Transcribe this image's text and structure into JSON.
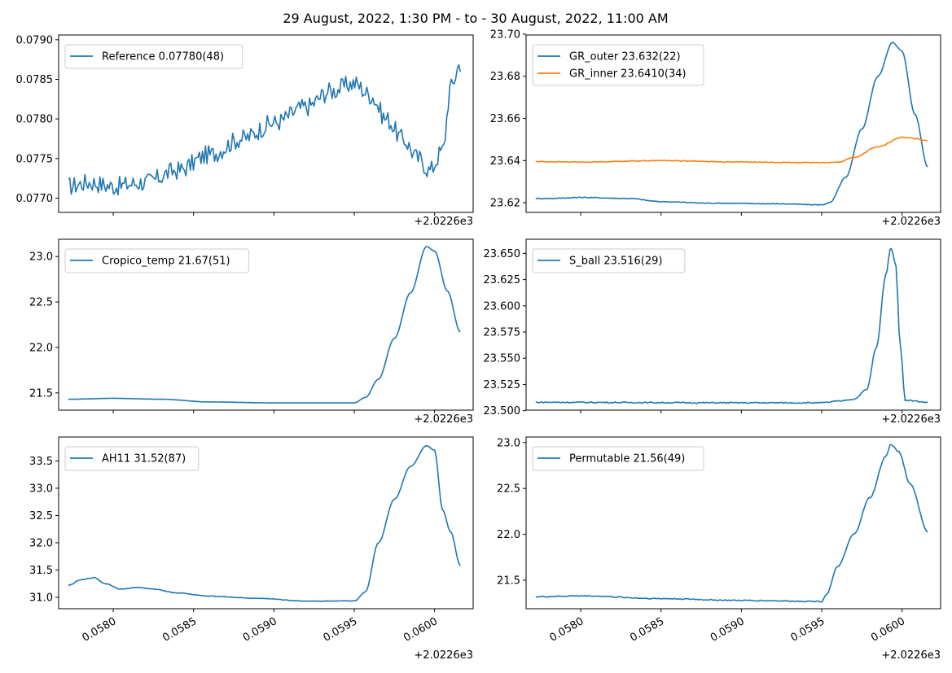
{
  "suptitle": "29 August, 2022, 1:30 PM - to - 30 August, 2022, 11:00 AM",
  "colors": {
    "series_blue": "#1f77b4",
    "series_orange": "#ff7f0e"
  },
  "chart_data": [
    {
      "type": "line",
      "panel": "top-left",
      "x_offset_label": "+2.0226e3",
      "xticks": [
        0.058,
        0.0585,
        0.059,
        0.0595,
        0.06
      ],
      "xtick_labels_shown": false,
      "xlim": [
        0.05766,
        0.06024
      ],
      "ylim": [
        0.07682,
        0.07906
      ],
      "yticks": [
        0.077,
        0.0775,
        0.078,
        0.0785,
        0.079
      ],
      "ytick_labels": [
        "0.0770",
        "0.0775",
        "0.0780",
        "0.0785",
        "0.0790"
      ],
      "legend_position": "upper-left",
      "series": [
        {
          "name": "Reference 0.07780(48)",
          "color": "#1f77b4",
          "x_range": [
            0.05772,
            0.06016
          ],
          "keypoints": [
            [
              0.05772,
              0.07715
            ],
            [
              0.05785,
              0.0772
            ],
            [
              0.058,
              0.07715
            ],
            [
              0.0582,
              0.0772
            ],
            [
              0.0584,
              0.07735
            ],
            [
              0.0586,
              0.07755
            ],
            [
              0.0588,
              0.07775
            ],
            [
              0.059,
              0.07795
            ],
            [
              0.0592,
              0.07815
            ],
            [
              0.05935,
              0.07835
            ],
            [
              0.0595,
              0.07845
            ],
            [
              0.0596,
              0.0783
            ],
            [
              0.0597,
              0.078
            ],
            [
              0.0598,
              0.07775
            ],
            [
              0.0599,
              0.0775
            ],
            [
              0.05997,
              0.07735
            ],
            [
              0.06005,
              0.0776
            ],
            [
              0.0601,
              0.0784
            ],
            [
              0.06016,
              0.0787
            ]
          ],
          "noise": 0.00012
        }
      ]
    },
    {
      "type": "line",
      "panel": "top-right",
      "x_offset_label": "+2.0226e3",
      "xticks": [
        0.058,
        0.0585,
        0.059,
        0.0595,
        0.06
      ],
      "xtick_labels_shown": false,
      "xlim": [
        0.05766,
        0.06024
      ],
      "ylim": [
        23.6154,
        23.6996
      ],
      "yticks": [
        23.62,
        23.64,
        23.66,
        23.68,
        23.7
      ],
      "ytick_labels": [
        "23.62",
        "23.64",
        "23.66",
        "23.68",
        "23.70"
      ],
      "legend_position": "upper-left",
      "series": [
        {
          "name": "GR_outer 23.632(22)",
          "color": "#1f77b4",
          "x_range": [
            0.05772,
            0.06016
          ],
          "keypoints": [
            [
              0.05772,
              23.622
            ],
            [
              0.0578,
              23.622
            ],
            [
              0.058,
              23.6225
            ],
            [
              0.0583,
              23.622
            ],
            [
              0.0585,
              23.6205
            ],
            [
              0.0588,
              23.6198
            ],
            [
              0.0592,
              23.6195
            ],
            [
              0.0595,
              23.619
            ],
            [
              0.05955,
              23.62
            ],
            [
              0.05965,
              23.632
            ],
            [
              0.05975,
              23.655
            ],
            [
              0.05985,
              23.68
            ],
            [
              0.05994,
              23.696
            ],
            [
              0.06,
              23.692
            ],
            [
              0.06008,
              23.662
            ],
            [
              0.06016,
              23.637
            ]
          ],
          "noise": 0.0002
        },
        {
          "name": "GR_inner 23.6410(34)",
          "color": "#ff7f0e",
          "x_range": [
            0.05772,
            0.06016
          ],
          "keypoints": [
            [
              0.05772,
              23.6395
            ],
            [
              0.058,
              23.6393
            ],
            [
              0.0585,
              23.64
            ],
            [
              0.059,
              23.6393
            ],
            [
              0.05945,
              23.639
            ],
            [
              0.0596,
              23.6392
            ],
            [
              0.0597,
              23.6415
            ],
            [
              0.05985,
              23.6465
            ],
            [
              0.06,
              23.651
            ],
            [
              0.06008,
              23.6505
            ],
            [
              0.06016,
              23.6495
            ]
          ],
          "noise": 0.0002
        }
      ]
    },
    {
      "type": "line",
      "panel": "middle-left",
      "x_offset_label": "+2.0226e3",
      "xticks": [
        0.058,
        0.0585,
        0.059,
        0.0595,
        0.06
      ],
      "xtick_labels_shown": false,
      "xlim": [
        0.05766,
        0.06024
      ],
      "ylim": [
        21.31,
        23.19
      ],
      "yticks": [
        21.5,
        22.0,
        22.5,
        23.0
      ],
      "ytick_labels": [
        "21.5",
        "22.0",
        "22.5",
        "23.0"
      ],
      "legend_position": "upper-left",
      "series": [
        {
          "name": "Cropico_temp 21.67(51)",
          "color": "#1f77b4",
          "x_range": [
            0.05772,
            0.06016
          ],
          "keypoints": [
            [
              0.05772,
              21.43
            ],
            [
              0.058,
              21.44
            ],
            [
              0.0583,
              21.43
            ],
            [
              0.0586,
              21.4
            ],
            [
              0.059,
              21.39
            ],
            [
              0.0595,
              21.39
            ],
            [
              0.05957,
              21.45
            ],
            [
              0.05965,
              21.65
            ],
            [
              0.05975,
              22.1
            ],
            [
              0.05985,
              22.6
            ],
            [
              0.05995,
              23.11
            ],
            [
              0.06,
              23.06
            ],
            [
              0.06008,
              22.62
            ],
            [
              0.06016,
              22.17
            ]
          ],
          "noise": 0
        }
      ]
    },
    {
      "type": "line",
      "panel": "middle-right",
      "x_offset_label": "+2.0226e3",
      "xticks": [
        0.058,
        0.0585,
        0.059,
        0.0595,
        0.06
      ],
      "xtick_labels_shown": false,
      "xlim": [
        0.05766,
        0.06024
      ],
      "ylim": [
        23.5005,
        23.6635
      ],
      "yticks": [
        23.5,
        23.525,
        23.55,
        23.575,
        23.6,
        23.625,
        23.65
      ],
      "ytick_labels": [
        "23.500",
        "23.525",
        "23.550",
        "23.575",
        "23.600",
        "23.625",
        "23.650"
      ],
      "legend_position": "upper-left",
      "series": [
        {
          "name": "S_ball 23.516(29)",
          "color": "#1f77b4",
          "x_range": [
            0.05772,
            0.06016
          ],
          "keypoints": [
            [
              0.05772,
              23.508
            ],
            [
              0.059,
              23.5075
            ],
            [
              0.0595,
              23.5075
            ],
            [
              0.0596,
              23.509
            ],
            [
              0.0597,
              23.511
            ],
            [
              0.05978,
              23.52
            ],
            [
              0.05984,
              23.56
            ],
            [
              0.0599,
              23.63
            ],
            [
              0.05993,
              23.656
            ],
            [
              0.05996,
              23.64
            ],
            [
              0.05999,
              23.56
            ],
            [
              0.06002,
              23.51
            ],
            [
              0.06016,
              23.508
            ]
          ],
          "noise": 0.0006
        }
      ]
    },
    {
      "type": "line",
      "panel": "bottom-left",
      "x_offset_label": "+2.0226e3",
      "xticks": [
        0.058,
        0.0585,
        0.059,
        0.0595,
        0.06
      ],
      "xtick_labels": [
        "0.0580",
        "0.0585",
        "0.0590",
        "0.0595",
        "0.0600"
      ],
      "xtick_labels_shown": true,
      "xlim": [
        0.05766,
        0.06024
      ],
      "ylim": [
        30.79,
        33.94
      ],
      "yticks": [
        31.0,
        31.5,
        32.0,
        32.5,
        33.0,
        33.5
      ],
      "ytick_labels": [
        "31.0",
        "31.5",
        "32.0",
        "32.5",
        "33.0",
        "33.5"
      ],
      "legend_position": "upper-left",
      "series": [
        {
          "name": "AH11 31.52(87)",
          "color": "#1f77b4",
          "x_range": [
            0.05772,
            0.06016
          ],
          "keypoints": [
            [
              0.05772,
              31.22
            ],
            [
              0.0578,
              31.32
            ],
            [
              0.05788,
              31.36
            ],
            [
              0.05795,
              31.25
            ],
            [
              0.05805,
              31.15
            ],
            [
              0.05815,
              31.18
            ],
            [
              0.05825,
              31.15
            ],
            [
              0.0584,
              31.08
            ],
            [
              0.0586,
              31.02
            ],
            [
              0.0589,
              30.98
            ],
            [
              0.0592,
              30.93
            ],
            [
              0.0595,
              30.93
            ],
            [
              0.05957,
              31.1
            ],
            [
              0.05965,
              32.0
            ],
            [
              0.05975,
              32.8
            ],
            [
              0.05985,
              33.4
            ],
            [
              0.05995,
              33.78
            ],
            [
              0.06,
              33.7
            ],
            [
              0.06005,
              32.6
            ],
            [
              0.0601,
              32.2
            ],
            [
              0.06016,
              31.58
            ]
          ],
          "noise": 0.005
        }
      ]
    },
    {
      "type": "line",
      "panel": "bottom-right",
      "x_offset_label": "+2.0226e3",
      "xticks": [
        0.058,
        0.0585,
        0.059,
        0.0595,
        0.06
      ],
      "xtick_labels": [
        "0.0580",
        "0.0585",
        "0.0590",
        "0.0595",
        "0.0600"
      ],
      "xtick_labels_shown": true,
      "xlim": [
        0.05766,
        0.06024
      ],
      "ylim": [
        21.19,
        23.06
      ],
      "yticks": [
        21.5,
        22.0,
        22.5,
        23.0
      ],
      "ytick_labels": [
        "21.5",
        "22.0",
        "22.5",
        "23.0"
      ],
      "legend_position": "upper-left",
      "series": [
        {
          "name": "Permutable 21.56(49)",
          "color": "#1f77b4",
          "x_range": [
            0.05772,
            0.06016
          ],
          "keypoints": [
            [
              0.05772,
              21.32
            ],
            [
              0.058,
              21.33
            ],
            [
              0.0585,
              21.3
            ],
            [
              0.059,
              21.28
            ],
            [
              0.0595,
              21.27
            ],
            [
              0.05953,
              21.35
            ],
            [
              0.0596,
              21.65
            ],
            [
              0.0597,
              22.0
            ],
            [
              0.0598,
              22.4
            ],
            [
              0.0599,
              22.85
            ],
            [
              0.05993,
              22.98
            ],
            [
              0.05998,
              22.9
            ],
            [
              0.06005,
              22.55
            ],
            [
              0.06016,
              22.03
            ]
          ],
          "noise": 0.006
        }
      ]
    }
  ]
}
